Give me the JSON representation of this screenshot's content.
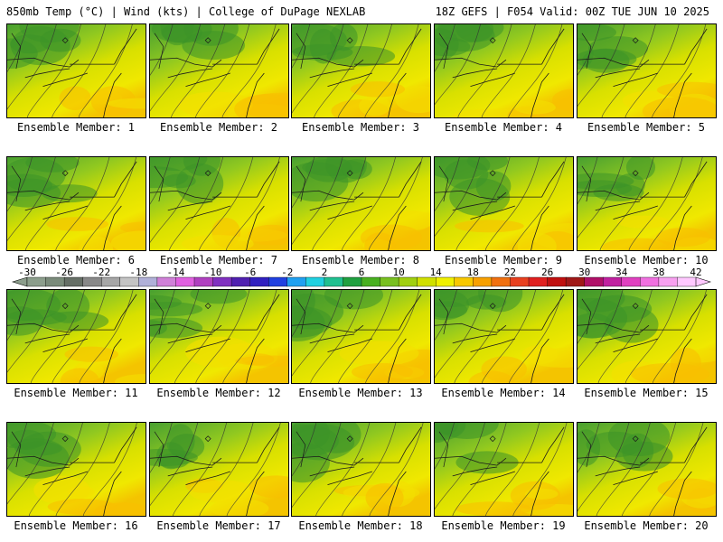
{
  "header": {
    "left": "850mb Temp (°C) | Wind (kts) | College of DuPage NEXLAB",
    "right": "18Z GEFS | F054 Valid: 00Z TUE JUN 10 2025"
  },
  "panel_label_prefix": "Ensemble Member: ",
  "members": [
    1,
    2,
    3,
    4,
    5,
    6,
    7,
    8,
    9,
    10,
    11,
    12,
    13,
    14,
    15,
    16,
    17,
    18,
    19,
    20
  ],
  "colorbar": {
    "labels": [
      "-30",
      "-26",
      "-22",
      "-18",
      "-14",
      "-10",
      "-6",
      "-2",
      "2",
      "6",
      "10",
      "14",
      "18",
      "22",
      "26",
      "30",
      "34",
      "38",
      "42"
    ],
    "colors": [
      "#8c9e8c",
      "#7a8b7a",
      "#666f66",
      "#888888",
      "#a6a6a6",
      "#c4c4c4",
      "#b0b0d8",
      "#d080d8",
      "#e060e0",
      "#b040c0",
      "#8030c0",
      "#5020b0",
      "#3020c0",
      "#2040e0",
      "#20a0f0",
      "#20d0e0",
      "#20c090",
      "#20a040",
      "#48b020",
      "#78c020",
      "#a0d010",
      "#d0e000",
      "#f0f000",
      "#f8c800",
      "#f8a000",
      "#f07010",
      "#e84020",
      "#e02020",
      "#c01010",
      "#a01818",
      "#b01068",
      "#c020a0",
      "#e040c0",
      "#f070e0",
      "#f8a0f0",
      "#ffc8ff"
    ]
  },
  "palette": {
    "border": "#000000",
    "coast": "#1a1a1a"
  }
}
